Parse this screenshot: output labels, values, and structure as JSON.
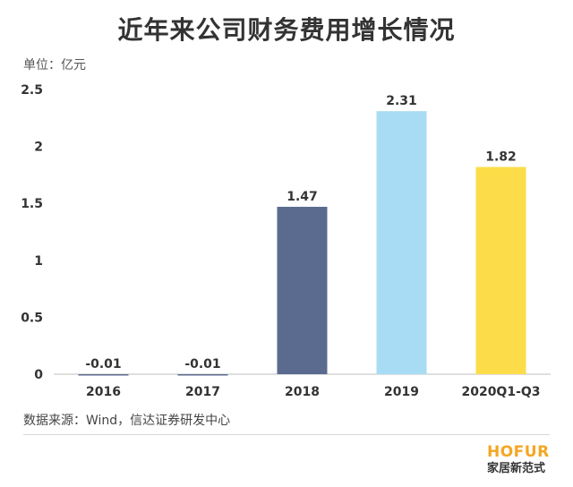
{
  "header": {
    "title": "近年来公司财务费用增长情况",
    "unit": "单位：亿元"
  },
  "footer": {
    "source": "数据来源：Wind，信达证券研发中心"
  },
  "logo": {
    "brand": "HOFUR",
    "sub": "家居新范式"
  },
  "chart_data": {
    "type": "bar",
    "title": "近年来公司财务费用增长情况",
    "ylabel": "单位：亿元",
    "categories": [
      "2016",
      "2017",
      "2018",
      "2019",
      "2020Q1-Q3"
    ],
    "values": [
      -0.01,
      -0.01,
      1.47,
      2.31,
      1.82
    ],
    "value_labels": [
      "-0.01",
      "-0.01",
      "1.47",
      "2.31",
      "1.82"
    ],
    "bar_colors": [
      "#5b6b8f",
      "#5b6b8f",
      "#5b6b8f",
      "#a8dcf5",
      "#fddc4a"
    ],
    "ylim": [
      0,
      2.5
    ],
    "yticks": [
      0,
      0.5,
      1,
      1.5,
      2,
      2.5
    ],
    "ytick_labels": [
      "0",
      "0.5",
      "1",
      "1.5",
      "2",
      "2.5"
    ],
    "grid": false,
    "legend": false
  }
}
